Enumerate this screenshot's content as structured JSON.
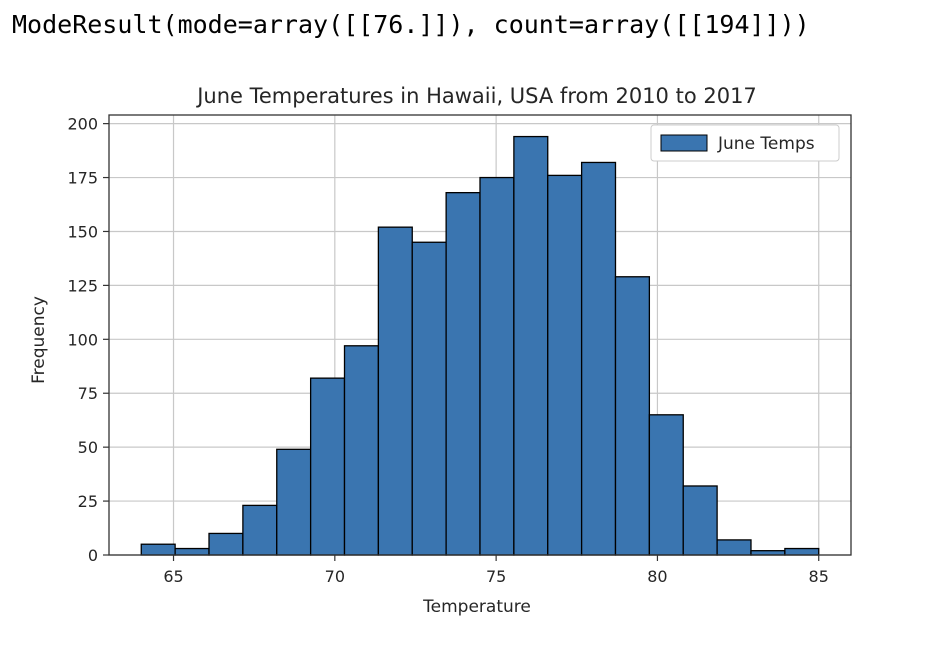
{
  "output": {
    "text": "ModeResult(mode=array([[76.]]), count=array([[194]]))"
  },
  "chart_data": {
    "type": "bar",
    "subtype": "histogram",
    "title": "June Temperatures in Hawaii, USA from 2010 to 2017",
    "xlabel": "Temperature",
    "ylabel": "Frequency",
    "xlim": [
      63,
      86
    ],
    "ylim": [
      0,
      204
    ],
    "xticks": [
      65,
      70,
      75,
      80,
      85
    ],
    "yticks": [
      0,
      25,
      50,
      75,
      100,
      125,
      150,
      175,
      200
    ],
    "grid": true,
    "legend_position": "top-right",
    "bin_edges": [
      64,
      65.05,
      66.1,
      67.15,
      68.2,
      69.25,
      70.3,
      71.35,
      72.4,
      73.45,
      74.5,
      75.55,
      76.6,
      77.65,
      78.7,
      79.75,
      80.8,
      81.85,
      82.9,
      83.95,
      85
    ],
    "series": [
      {
        "name": "June Temps",
        "color": "#3a75b0",
        "edge_color": "#000000",
        "values": [
          5,
          3,
          10,
          23,
          49,
          82,
          97,
          152,
          145,
          168,
          175,
          194,
          176,
          182,
          129,
          65,
          32,
          7,
          2,
          3
        ]
      }
    ]
  }
}
